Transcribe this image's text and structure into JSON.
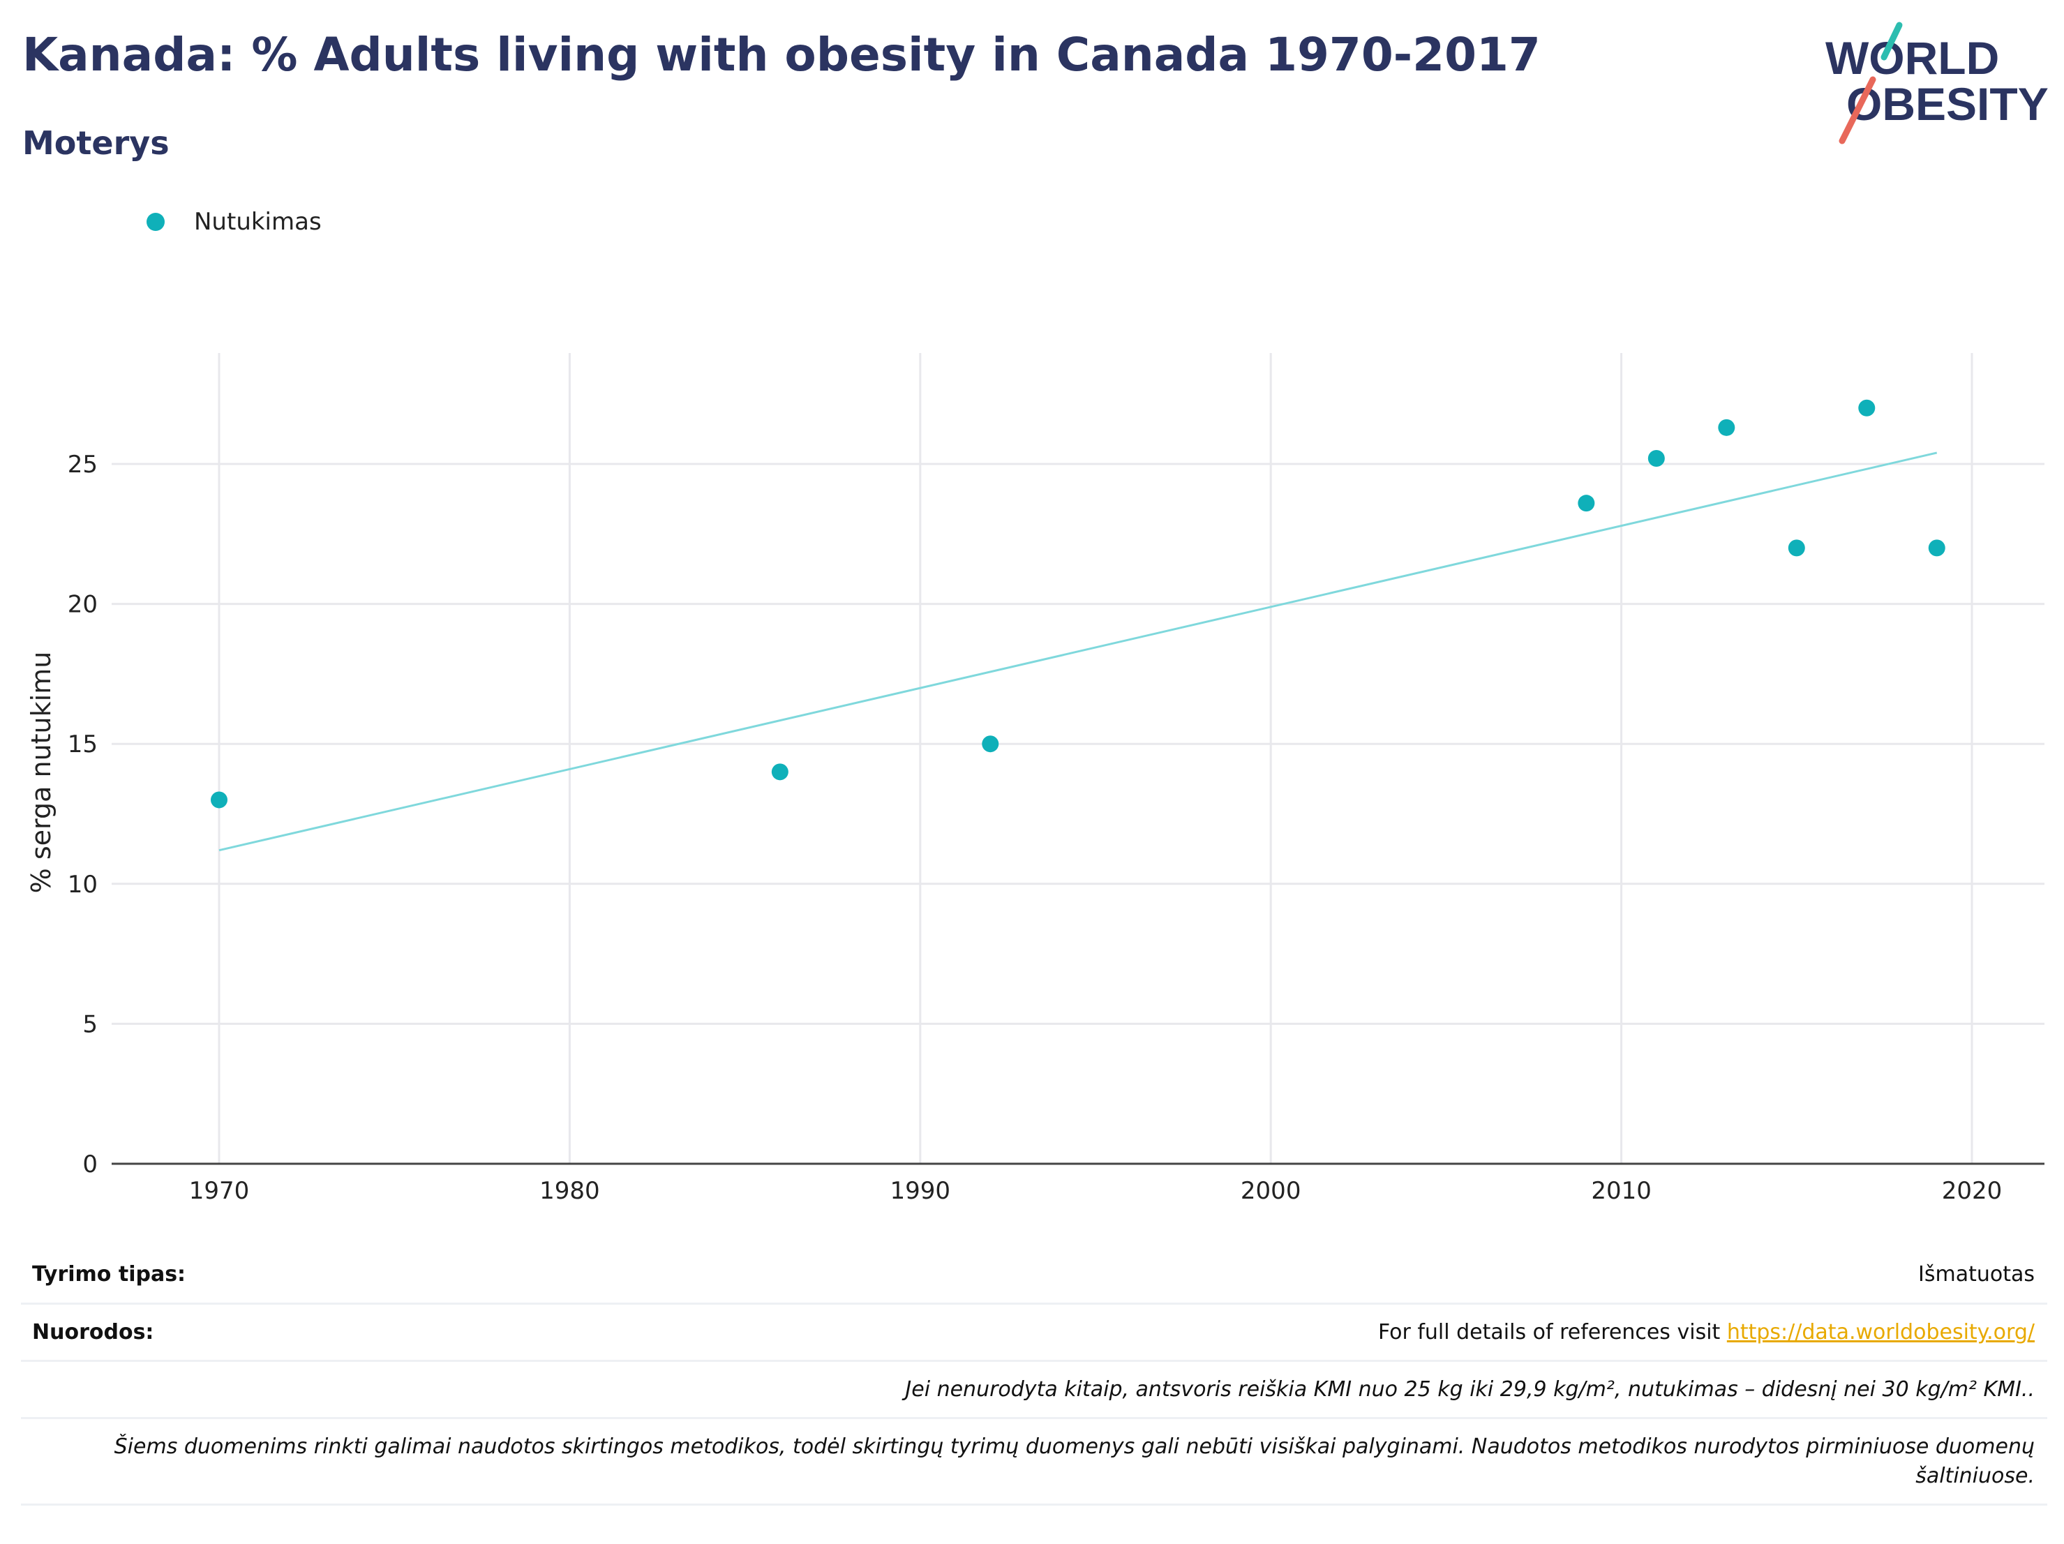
{
  "title": "Kanada: % Adults living with obesity in Canada 1970-2017",
  "subtitle": "Moterys",
  "logo": {
    "line1": "WORLD",
    "line2": "OBESITY"
  },
  "colors": {
    "title": "#2b3461",
    "series": "#0fb0b9",
    "trend": "#7fd8dc",
    "link": "#e8a900",
    "logo_teal": "#2dbdb0",
    "logo_red": "#e8685a"
  },
  "legend": {
    "label": "Nutukimas"
  },
  "chart_data": {
    "type": "scatter",
    "title": "Kanada: % Adults living with obesity in Canada 1970-2017",
    "subtitle": "Moterys",
    "xlabel": "",
    "ylabel": "% serga nutukimu",
    "xlim": [
      1967,
      2022
    ],
    "ylim": [
      0,
      28.5
    ],
    "xticks": [
      1970,
      1980,
      1990,
      2000,
      2010,
      2020
    ],
    "yticks": [
      0,
      5,
      10,
      15,
      20,
      25
    ],
    "grid": true,
    "legend_position": "top-left",
    "series": [
      {
        "name": "Nutukimas",
        "x": [
          1970,
          1986,
          1992,
          2009,
          2011,
          2013,
          2015,
          2017,
          2019
        ],
        "y": [
          13,
          14,
          15,
          23.6,
          25.2,
          26.3,
          22,
          27,
          22
        ]
      }
    ],
    "trendline": {
      "x": [
        1970,
        2019
      ],
      "y": [
        11.2,
        25.4
      ]
    }
  },
  "table": {
    "rows": [
      {
        "key": "Tyrimo tipas:",
        "value": "Išmatuotas"
      },
      {
        "key": "Nuorodos:",
        "value": "For full details of references visit ",
        "link": "https://data.worldobesity.org/"
      },
      {
        "key": "",
        "value": "Jei nenurodyta kitaip, antsvoris reiškia KMI nuo 25 kg iki 29,9 kg/m², nutukimas – didesnį nei 30 kg/m² KMI.."
      },
      {
        "key": "",
        "value": "Šiems duomenims rinkti galimai naudotos skirtingos metodikos, todėl skirtingų tyrimų duomenys gali nebūti visiškai palyginami. Naudotos metodikos nurodytos pirminiuose duomenų šaltiniuose."
      }
    ]
  }
}
